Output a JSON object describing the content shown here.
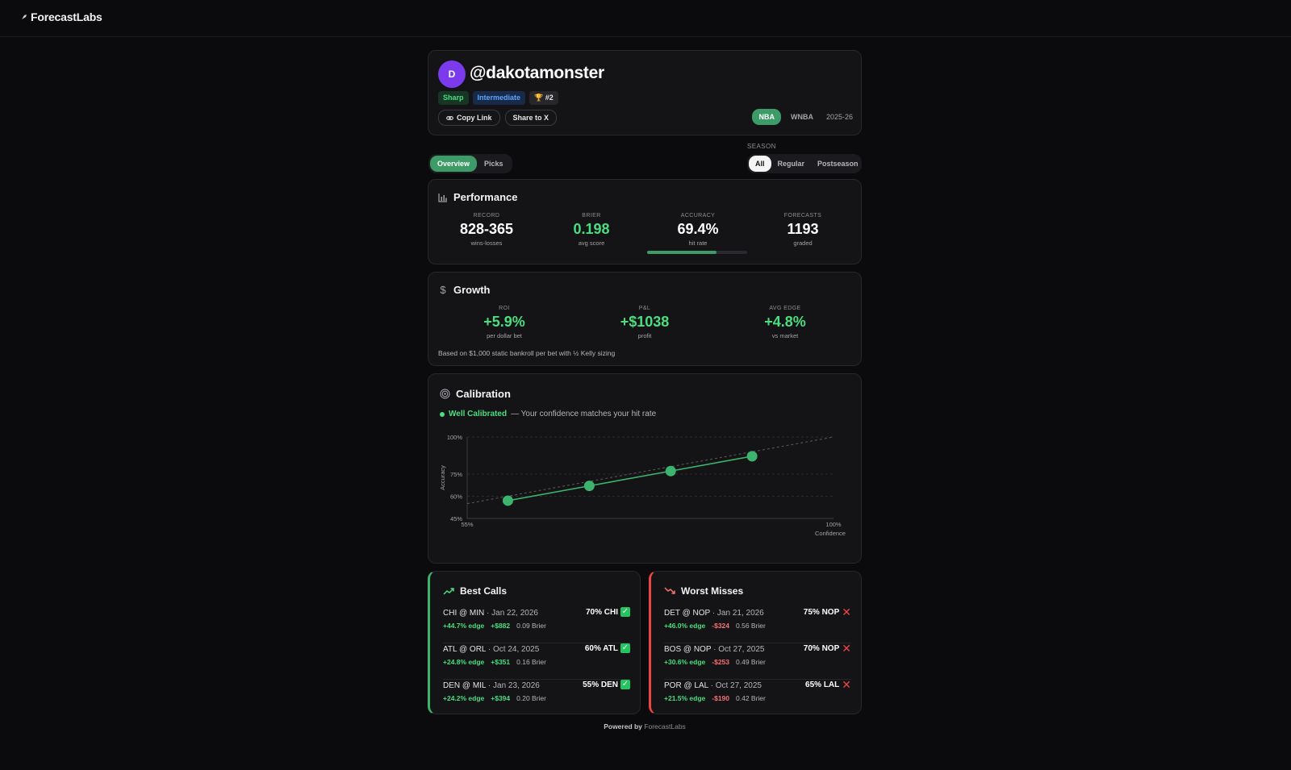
{
  "app": {
    "logo": "ForecastLabs"
  },
  "profile": {
    "avatar_initial": "D",
    "handle": "@dakotamonster",
    "badges": {
      "tier": "Sharp",
      "level": "Intermediate",
      "rank": "#2"
    },
    "copy_link_label": "Copy Link",
    "share_label": "Share to X",
    "leagues": [
      "NBA",
      "WNBA"
    ],
    "active_league": "NBA",
    "season": "2025-26"
  },
  "tabs": {
    "overview": "Overview",
    "picks": "Picks",
    "active": "Overview"
  },
  "season_filter": {
    "caption": "SEASON",
    "options": [
      "All",
      "Regular",
      "Postseason"
    ],
    "active": "All"
  },
  "performance": {
    "title": "Performance",
    "record": {
      "caption": "RECORD",
      "value": "828-365",
      "sub": "wins-losses"
    },
    "brier": {
      "caption": "BRIER",
      "value": "0.198",
      "sub": "avg score"
    },
    "accuracy": {
      "caption": "ACCURACY",
      "value": "69.4%",
      "sub": "hit rate",
      "fraction": 0.694
    },
    "forecasts": {
      "caption": "FORECASTS",
      "value": "1193",
      "sub": "graded"
    }
  },
  "growth": {
    "title": "Growth",
    "roi": {
      "caption": "ROI",
      "value": "+5.9%",
      "sub": "per dollar bet"
    },
    "pnl": {
      "caption": "P&L",
      "value": "+$1038",
      "sub": "profit"
    },
    "avg_edge": {
      "caption": "AVG EDGE",
      "value": "+4.8%",
      "sub": "vs market"
    },
    "note": "Based on $1,000 static bankroll per bet with ½ Kelly sizing"
  },
  "calibration": {
    "title": "Calibration",
    "status": "Well Calibrated",
    "description": "— Your confidence matches your hit rate"
  },
  "chart_data": {
    "type": "line",
    "x": [
      60,
      70,
      80,
      90
    ],
    "series": [
      {
        "values": [
          57,
          67,
          77,
          87
        ]
      }
    ],
    "reference_line": {
      "x": [
        55,
        100
      ],
      "y": [
        55,
        100
      ]
    },
    "xlabel": "Confidence",
    "ylabel": "Accuracy",
    "xlim": [
      55,
      100
    ],
    "ylim": [
      45,
      100
    ],
    "x_ticks": [
      "55%",
      "100%"
    ],
    "y_ticks": [
      {
        "v": 100,
        "label": "100%"
      },
      {
        "v": 75,
        "label": "75%"
      },
      {
        "v": 60,
        "label": "60%"
      },
      {
        "v": 45,
        "label": "45%"
      }
    ],
    "color": "#3db46d"
  },
  "best_calls": {
    "title": "Best Calls",
    "rows": [
      {
        "game": "CHI @ MIN",
        "date": "· Jan 22, 2026",
        "pick": "70% CHI",
        "edge": "+44.7% edge",
        "pnl": "+$882",
        "brier": "0.09 Brier"
      },
      {
        "game": "ATL @ ORL",
        "date": "· Oct 24, 2025",
        "pick": "60% ATL",
        "edge": "+24.8% edge",
        "pnl": "+$351",
        "brier": "0.16 Brier"
      },
      {
        "game": "DEN @ MIL",
        "date": "· Jan 23, 2026",
        "pick": "55% DEN",
        "edge": "+24.2% edge",
        "pnl": "+$394",
        "brier": "0.20 Brier"
      }
    ]
  },
  "worst_misses": {
    "title": "Worst Misses",
    "rows": [
      {
        "game": "DET @ NOP",
        "date": "· Jan 21, 2026",
        "pick": "75% NOP",
        "edge": "+46.0% edge",
        "pnl": "-$324",
        "brier": "0.56 Brier"
      },
      {
        "game": "BOS @ NOP",
        "date": "· Oct 27, 2025",
        "pick": "70% NOP",
        "edge": "+30.6% edge",
        "pnl": "-$253",
        "brier": "0.49 Brier"
      },
      {
        "game": "POR @ LAL",
        "date": "· Oct 27, 2025",
        "pick": "65% LAL",
        "edge": "+21.5% edge",
        "pnl": "-$190",
        "brier": "0.42 Brier"
      }
    ]
  },
  "footer": {
    "prefix": "Powered by",
    "brand": "ForecastLabs"
  }
}
